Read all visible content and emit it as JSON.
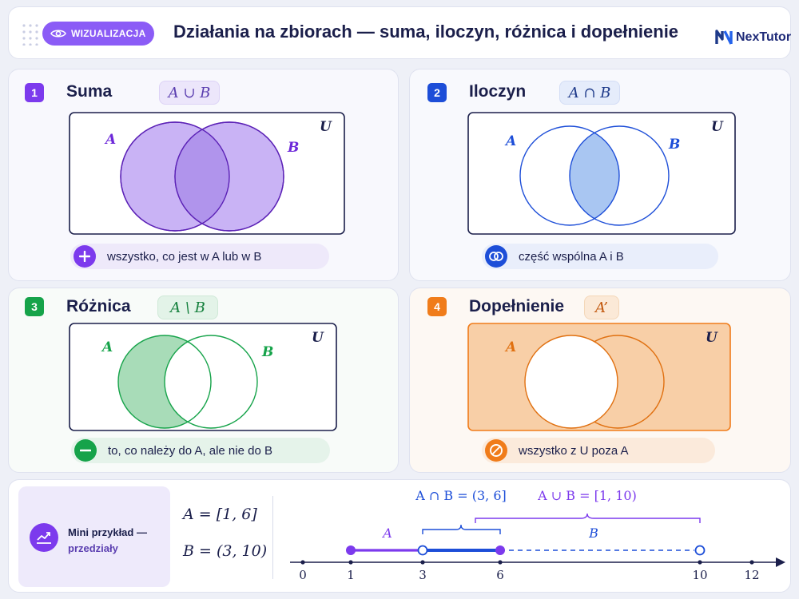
{
  "header": {
    "badge_label": "WIZUALIZACJA",
    "title": "Działania na zbiorach — suma, iloczyn, różnica i dopełnienie",
    "brand": "NexTutor"
  },
  "cards": [
    {
      "number": "1",
      "title": "Suma",
      "formula": "A ∪ B",
      "set_a": "A",
      "set_b": "B",
      "universe": "U",
      "description": "wszystko, co jest w A lub w B"
    },
    {
      "number": "2",
      "title": "Iloczyn",
      "formula": "A ∩ B",
      "set_a": "A",
      "set_b": "B",
      "universe": "U",
      "description": "część wspólna A i B"
    },
    {
      "number": "3",
      "title": "Różnica",
      "formula": "A \\ B",
      "set_a": "A",
      "set_b": "B",
      "universe": "U",
      "description": "to, co należy do A, ale nie do B"
    },
    {
      "number": "4",
      "title": "Dopełnienie",
      "formula": "A’",
      "set_a": "A",
      "universe": "U",
      "description": "wszystko z U poza A"
    }
  ],
  "colors": {
    "union": "#7c3aed",
    "intersection": "#1d4ed8",
    "difference": "#16a34a",
    "complement": "#f07c1a",
    "ink": "#1b1f4b"
  },
  "example": {
    "title": "Mini przykład —",
    "subtitle": "przedziały",
    "interval_a": "A = [1, 6]",
    "interval_b": "B = (3, 10)",
    "intersection_label": "A ∩ B = (3, 6]",
    "union_label": "A ∪ B = [1, 10)",
    "label_a": "A",
    "label_b": "B",
    "ticks": [
      "0",
      "1",
      "3",
      "6",
      "10",
      "12"
    ]
  }
}
